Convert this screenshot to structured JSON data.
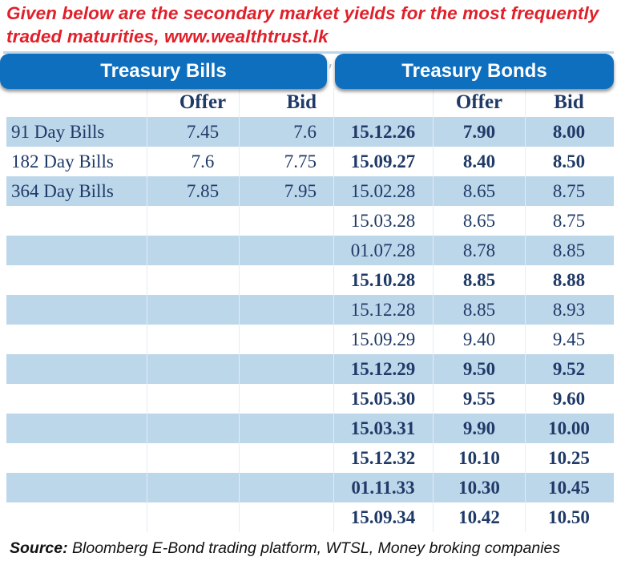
{
  "headline": {
    "line1": "Given below are the secondary market yields for the most frequently",
    "line2": "traded maturities, www.wealthtrust.lk"
  },
  "headers": {
    "bills": "Treasury Bills",
    "bonds": "Treasury Bonds"
  },
  "columns": {
    "bills_offer": "Offer",
    "bills_bid": "Bid",
    "bonds_offer": "Offer",
    "bonds_bid": "Bid"
  },
  "rows": [
    {
      "bill": "91 Day Bills",
      "bill_offer": "7.45",
      "bill_bid": "7.6",
      "date": "15.12.26",
      "offer": "7.90",
      "bid": "8.00",
      "bold": true
    },
    {
      "bill": "182 Day Bills",
      "bill_offer": "7.6",
      "bill_bid": "7.75",
      "date": "15.09.27",
      "offer": "8.40",
      "bid": "8.50",
      "bold": true
    },
    {
      "bill": "364 Day Bills",
      "bill_offer": "7.85",
      "bill_bid": "7.95",
      "date": "15.02.28",
      "offer": "8.65",
      "bid": "8.75",
      "bold": false
    },
    {
      "bill": "",
      "bill_offer": "",
      "bill_bid": "",
      "date": "15.03.28",
      "offer": "8.65",
      "bid": "8.75",
      "bold": false
    },
    {
      "bill": "",
      "bill_offer": "",
      "bill_bid": "",
      "date": "01.07.28",
      "offer": "8.78",
      "bid": "8.85",
      "bold": false
    },
    {
      "bill": "",
      "bill_offer": "",
      "bill_bid": "",
      "date": "15.10.28",
      "offer": "8.85",
      "bid": "8.88",
      "bold": true
    },
    {
      "bill": "",
      "bill_offer": "",
      "bill_bid": "",
      "date": "15.12.28",
      "offer": "8.85",
      "bid": "8.93",
      "bold": false
    },
    {
      "bill": "",
      "bill_offer": "",
      "bill_bid": "",
      "date": "15.09.29",
      "offer": "9.40",
      "bid": "9.45",
      "bold": false
    },
    {
      "bill": "",
      "bill_offer": "",
      "bill_bid": "",
      "date": "15.12.29",
      "offer": "9.50",
      "bid": "9.52",
      "bold": true
    },
    {
      "bill": "",
      "bill_offer": "",
      "bill_bid": "",
      "date": "15.05.30",
      "offer": "9.55",
      "bid": "9.60",
      "bold": true
    },
    {
      "bill": "",
      "bill_offer": "",
      "bill_bid": "",
      "date": "15.03.31",
      "offer": "9.90",
      "bid": "10.00",
      "bold": true
    },
    {
      "bill": "",
      "bill_offer": "",
      "bill_bid": "",
      "date": "15.12.32",
      "offer": "10.10",
      "bid": "10.25",
      "bold": true
    },
    {
      "bill": "",
      "bill_offer": "",
      "bill_bid": "",
      "date": "01.11.33",
      "offer": "10.30",
      "bid": "10.45",
      "bold": true
    },
    {
      "bill": "",
      "bill_offer": "",
      "bill_bid": "",
      "date": "15.09.34",
      "offer": "10.42",
      "bid": "10.50",
      "bold": true
    }
  ],
  "source": {
    "label": "Source:",
    "text": " Bloomberg E-Bond trading platform, WTSL, Money broking companies"
  }
}
